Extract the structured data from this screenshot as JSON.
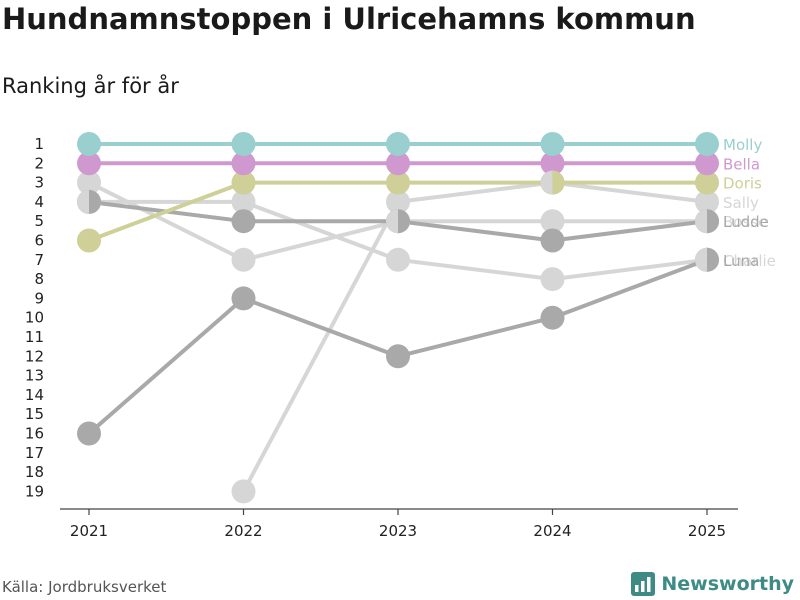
{
  "title": "Hundnamnstoppen i Ulricehamns kommun",
  "subtitle": "Ranking år för år",
  "source": "Källa: Jordbruksverket",
  "brand": "Newsworthy",
  "chart_data": {
    "type": "line",
    "title": "Hundnamnstoppen i Ulricehamns kommun",
    "subtitle": "Ranking år för år",
    "x": [
      "2021",
      "2022",
      "2023",
      "2024",
      "2025"
    ],
    "y_ticks": [
      1,
      2,
      3,
      4,
      5,
      6,
      7,
      8,
      9,
      10,
      11,
      12,
      13,
      14,
      15,
      16,
      17,
      18,
      19
    ],
    "ylim": [
      1,
      19
    ],
    "y_inverted": true,
    "xlabel": "",
    "ylabel": "",
    "series": [
      {
        "name": "Charlie",
        "color": "#d6d6d6",
        "values": [
          4,
          4,
          7,
          8,
          7
        ]
      },
      {
        "name": "Bosse",
        "color": "#d6d6d6",
        "values": [
          3,
          7,
          5,
          5,
          5
        ]
      },
      {
        "name": "Sally",
        "color": "#d6d6d6",
        "values": [
          null,
          19,
          4,
          3,
          4
        ]
      },
      {
        "name": "Luna",
        "color": "#a9a9a9",
        "values": [
          16,
          9,
          12,
          10,
          7
        ]
      },
      {
        "name": "Ludde",
        "color": "#a9a9a9",
        "values": [
          4,
          5,
          5,
          6,
          5
        ]
      },
      {
        "name": "Doris",
        "color": "#cfcf98",
        "values": [
          6,
          3,
          3,
          3,
          3
        ]
      },
      {
        "name": "Bella",
        "color": "#cf99cf",
        "values": [
          2,
          2,
          2,
          2,
          2
        ]
      },
      {
        "name": "Molly",
        "color": "#99cfcf",
        "values": [
          1,
          1,
          1,
          1,
          1
        ]
      }
    ]
  }
}
